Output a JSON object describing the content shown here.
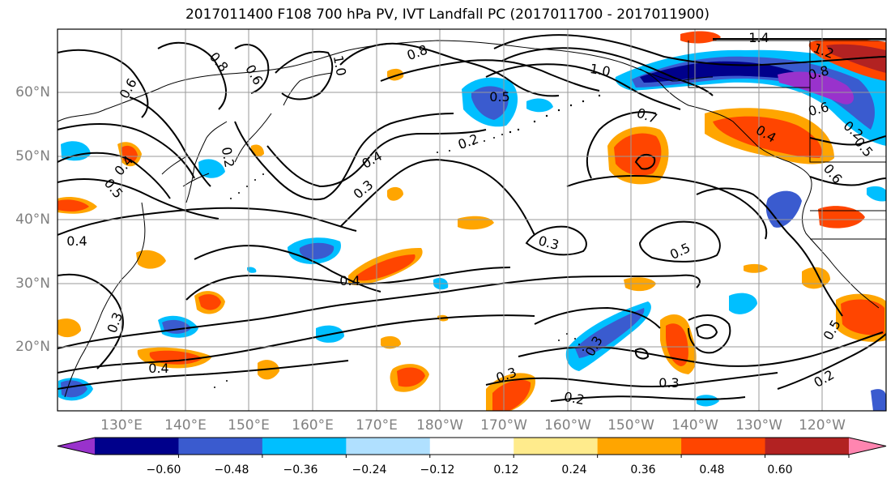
{
  "title": "2017011400 F108 700 hPa PV, IVT Landfall PC (2017011700 - 2017011900)",
  "lat_labels": [
    "60°N",
    "50°N",
    "40°N",
    "30°N",
    "20°N"
  ],
  "lon_labels": [
    "130°E",
    "140°E",
    "150°E",
    "160°E",
    "170°E",
    "180°W",
    "170°W",
    "160°W",
    "150°W",
    "140°W",
    "130°W",
    "120°W"
  ],
  "colorbar": {
    "colors": [
      "#9932CC",
      "#00008B",
      "#3A5BCF",
      "#00BFFF",
      "#B0E0FF",
      "#FFFFFF",
      "#FFEB8C",
      "#FFA500",
      "#FF4500",
      "#B22222",
      "#FF85B0"
    ],
    "tick_labels": [
      "−0.60",
      "−0.48",
      "−0.36",
      "−0.24",
      "−0.12",
      "0.12",
      "0.24",
      "0.36",
      "0.48",
      "0.60"
    ]
  },
  "contour_labels": [
    "0.6",
    "0.8",
    "0.6",
    "1.0",
    "0.8",
    "0.5",
    "1.0",
    "1.4",
    "1.2",
    "0.8",
    "0.6",
    "0.7",
    "0.2",
    "0.4",
    "0.3",
    "0.5",
    "0.4",
    "0.2",
    "0.4",
    "0.3",
    "0.5",
    "0.3",
    "0.4",
    "0.3",
    "0.2",
    "0.3",
    "0.2",
    "0.3",
    "0.5",
    "0.4",
    "0.2",
    "0.5",
    "0.4",
    "0.6"
  ]
}
